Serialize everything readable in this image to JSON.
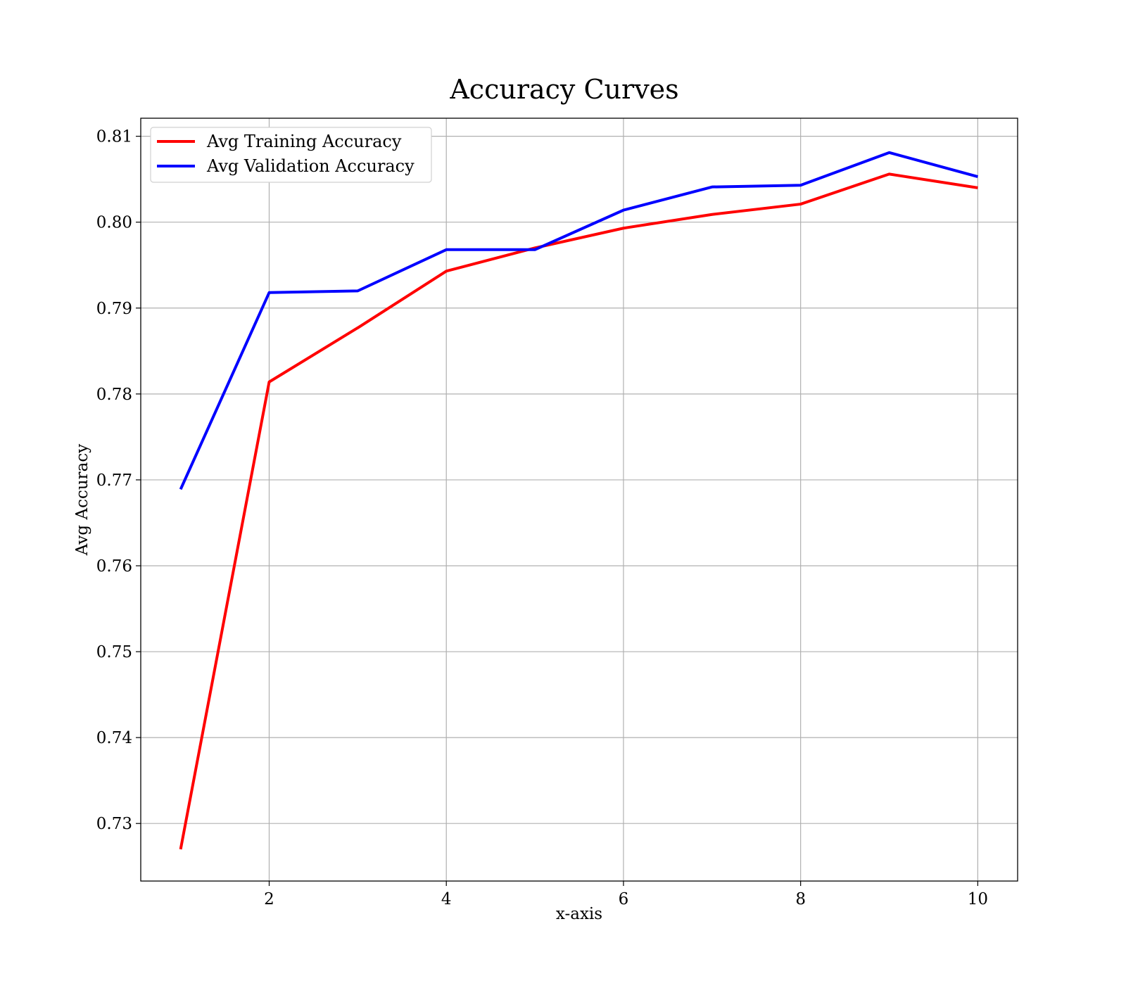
{
  "chart_data": {
    "type": "line",
    "title": "Accuracy Curves",
    "xlabel": "x-axis",
    "ylabel": "Avg Accuracy",
    "x": [
      1,
      2,
      3,
      4,
      5,
      6,
      7,
      8,
      9,
      10
    ],
    "xlim": [
      0.55,
      10.45
    ],
    "ylim": [
      0.7233,
      0.8121
    ],
    "xticks": [
      2,
      4,
      6,
      8,
      10
    ],
    "xtick_labels": [
      "2",
      "4",
      "6",
      "8",
      "10"
    ],
    "yticks": [
      0.73,
      0.74,
      0.75,
      0.76,
      0.77,
      0.78,
      0.79,
      0.8,
      0.81
    ],
    "ytick_labels": [
      "0.73",
      "0.74",
      "0.75",
      "0.76",
      "0.77",
      "0.78",
      "0.79",
      "0.80",
      "0.81"
    ],
    "grid": true,
    "legend_position": "top-left",
    "series": [
      {
        "name": "Avg Training Accuracy",
        "color": "#ff0000",
        "values": [
          0.727,
          0.7814,
          0.7877,
          0.7943,
          0.797,
          0.7993,
          0.8009,
          0.8021,
          0.8056,
          0.804
        ]
      },
      {
        "name": "Avg Validation Accuracy",
        "color": "#0000ff",
        "values": [
          0.7689,
          0.7918,
          0.792,
          0.7968,
          0.7968,
          0.8014,
          0.8041,
          0.8043,
          0.8081,
          0.8053
        ]
      }
    ]
  }
}
